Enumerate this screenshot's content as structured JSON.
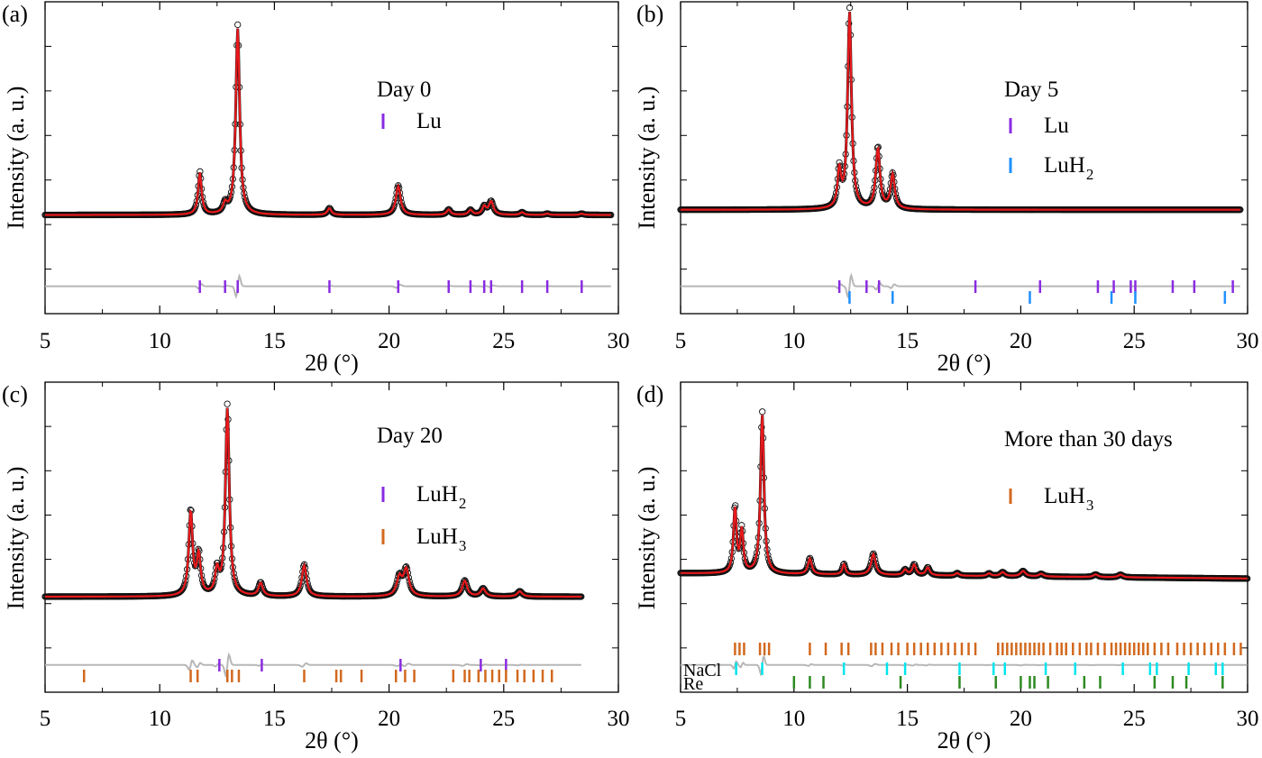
{
  "chart_data": [
    {
      "type": "line",
      "panel_label": "(a)",
      "annotation": "Day 0",
      "xlabel": "2θ (°)",
      "ylabel": "Intensity (a. u.)",
      "xlim": [
        5,
        30
      ],
      "x_ticks": [
        "5",
        "10",
        "15",
        "20",
        "25",
        "30"
      ],
      "data_end": 29.7,
      "baseline": 0.21,
      "peaks": [
        [
          11.75,
          0.16,
          0.09
        ],
        [
          12.85,
          0.035,
          0.1
        ],
        [
          13.4,
          0.71,
          0.1
        ],
        [
          17.4,
          0.025,
          0.1
        ],
        [
          20.4,
          0.11,
          0.12
        ],
        [
          22.6,
          0.02,
          0.1
        ],
        [
          23.55,
          0.018,
          0.1
        ],
        [
          24.15,
          0.03,
          0.1
        ],
        [
          24.45,
          0.05,
          0.12
        ],
        [
          25.8,
          0.01,
          0.1
        ],
        [
          26.9,
          0.005,
          0.1
        ],
        [
          28.4,
          0.005,
          0.1
        ]
      ],
      "legend": [
        {
          "name": "Lu",
          "sub": "",
          "color": "#8a2be2",
          "ticks": [
            11.75,
            12.85,
            13.4,
            17.4,
            20.4,
            22.6,
            23.55,
            24.15,
            24.45,
            25.8,
            26.9,
            28.4
          ]
        }
      ]
    },
    {
      "type": "line",
      "panel_label": "(b)",
      "annotation": "Day 5",
      "xlabel": "2θ (°)",
      "ylabel": "Intensity (a. u.)",
      "xlim": [
        5,
        30
      ],
      "x_ticks": [
        "5",
        "10",
        "15",
        "20",
        "25",
        "30"
      ],
      "data_end": 29.7,
      "baseline": 0.23,
      "peaks": [
        [
          12.0,
          0.14,
          0.09
        ],
        [
          12.45,
          0.75,
          0.1
        ],
        [
          13.7,
          0.23,
          0.11
        ],
        [
          14.35,
          0.13,
          0.11
        ]
      ],
      "legend": [
        {
          "name": "Lu",
          "sub": "",
          "color": "#8a2be2",
          "ticks": [
            12.0,
            13.2,
            13.75,
            18.0,
            20.85,
            23.4,
            24.1,
            24.85,
            25.05,
            26.7,
            27.65,
            29.35
          ]
        },
        {
          "name": "LuH",
          "sub": "2",
          "color": "#1e90ff",
          "ticks": [
            12.45,
            14.35,
            20.4,
            24.0,
            25.05,
            29.0
          ]
        }
      ]
    },
    {
      "type": "line",
      "panel_label": "(c)",
      "annotation": "Day 20",
      "xlabel": "2θ (°)",
      "ylabel": "Intensity (a. u.)",
      "xlim": [
        5,
        30
      ],
      "x_ticks": [
        "5",
        "10",
        "15",
        "20",
        "25",
        "30"
      ],
      "data_end": 28.4,
      "baseline": 0.2,
      "peaks": [
        [
          11.35,
          0.32,
          0.1
        ],
        [
          11.7,
          0.15,
          0.1
        ],
        [
          12.5,
          0.09,
          0.1
        ],
        [
          12.95,
          0.72,
          0.1
        ],
        [
          14.4,
          0.05,
          0.11
        ],
        [
          16.3,
          0.12,
          0.12
        ],
        [
          20.45,
          0.07,
          0.14
        ],
        [
          20.75,
          0.1,
          0.14
        ],
        [
          23.3,
          0.06,
          0.13
        ],
        [
          24.1,
          0.03,
          0.13
        ],
        [
          25.7,
          0.02,
          0.13
        ]
      ],
      "legend": [
        {
          "name": "LuH",
          "sub": "2",
          "color": "#8a2be2",
          "ticks": [
            12.6,
            14.45,
            20.5,
            24.0,
            25.1
          ]
        },
        {
          "name": "LuH",
          "sub": "3",
          "color": "#d2691e",
          "ticks": [
            6.7,
            11.35,
            11.65,
            12.95,
            13.15,
            13.45,
            16.3,
            17.7,
            17.9,
            18.8,
            20.3,
            20.7,
            21.1,
            22.8,
            23.3,
            23.5,
            23.9,
            24.2,
            24.5,
            24.8,
            25.1,
            25.6,
            25.9,
            26.3,
            26.7,
            27.1
          ]
        }
      ]
    },
    {
      "type": "line",
      "panel_label": "(d)",
      "annotation": "More than 30 days",
      "xlabel": "2θ (°)",
      "ylabel": "Intensity (a. u.)",
      "xlim": [
        5,
        30
      ],
      "x_ticks": [
        "5",
        "10",
        "15",
        "20",
        "25",
        "30"
      ],
      "data_end": 30,
      "baseline": 0.29,
      "slope": -0.02,
      "peaks": [
        [
          7.4,
          0.25,
          0.08
        ],
        [
          7.7,
          0.16,
          0.08
        ],
        [
          8.6,
          0.61,
          0.09
        ],
        [
          10.7,
          0.06,
          0.1
        ],
        [
          12.2,
          0.04,
          0.08
        ],
        [
          13.5,
          0.08,
          0.12
        ],
        [
          14.9,
          0.02,
          0.1
        ],
        [
          15.3,
          0.04,
          0.1
        ],
        [
          15.9,
          0.03,
          0.1
        ],
        [
          17.2,
          0.01,
          0.1
        ],
        [
          18.6,
          0.01,
          0.1
        ],
        [
          19.2,
          0.015,
          0.12
        ],
        [
          20.1,
          0.02,
          0.13
        ],
        [
          20.9,
          0.01,
          0.12
        ],
        [
          23.3,
          0.01,
          0.12
        ],
        [
          24.4,
          0.01,
          0.12
        ]
      ],
      "legend": [
        {
          "name": "LuH",
          "sub": "3",
          "color": "#d2691e",
          "ticks": [
            7.4,
            7.6,
            7.8,
            8.5,
            8.7,
            8.9,
            10.7,
            11.4,
            12.1,
            12.4,
            13.4,
            13.6,
            13.9,
            14.3,
            14.6,
            15.0,
            15.3,
            15.6,
            15.9,
            16.2,
            16.5,
            16.8,
            17.1,
            17.4,
            17.7,
            18.0,
            19.0,
            19.2,
            19.4,
            19.6,
            19.8,
            20.0,
            20.2,
            20.4,
            20.6,
            20.8,
            21.0,
            21.3,
            21.6,
            21.8,
            22.0,
            22.3,
            22.6,
            22.9,
            23.1,
            23.4,
            23.7,
            24.0,
            24.2,
            24.4,
            24.6,
            24.8,
            25.0,
            25.2,
            25.4,
            25.6,
            25.9,
            26.2,
            26.5,
            26.9,
            27.2,
            27.5,
            27.8,
            28.1,
            28.4,
            28.7,
            29.0,
            29.4,
            29.7
          ],
          "bottom": false
        }
      ],
      "extra_rows": [
        {
          "name": "NaCl",
          "color": "#00e5ee",
          "ticks": [
            7.45,
            8.6,
            12.2,
            14.1,
            14.9,
            17.3,
            18.8,
            19.3,
            21.1,
            22.4,
            24.5,
            25.7,
            26.0,
            27.4,
            28.6,
            28.9
          ]
        },
        {
          "name": "Re",
          "color": "#2e8b22",
          "ticks": [
            10.0,
            10.7,
            11.3,
            14.7,
            17.3,
            18.9,
            20.0,
            20.4,
            20.6,
            21.2,
            22.8,
            23.5,
            25.9,
            26.7,
            27.3,
            28.9
          ]
        }
      ]
    }
  ]
}
